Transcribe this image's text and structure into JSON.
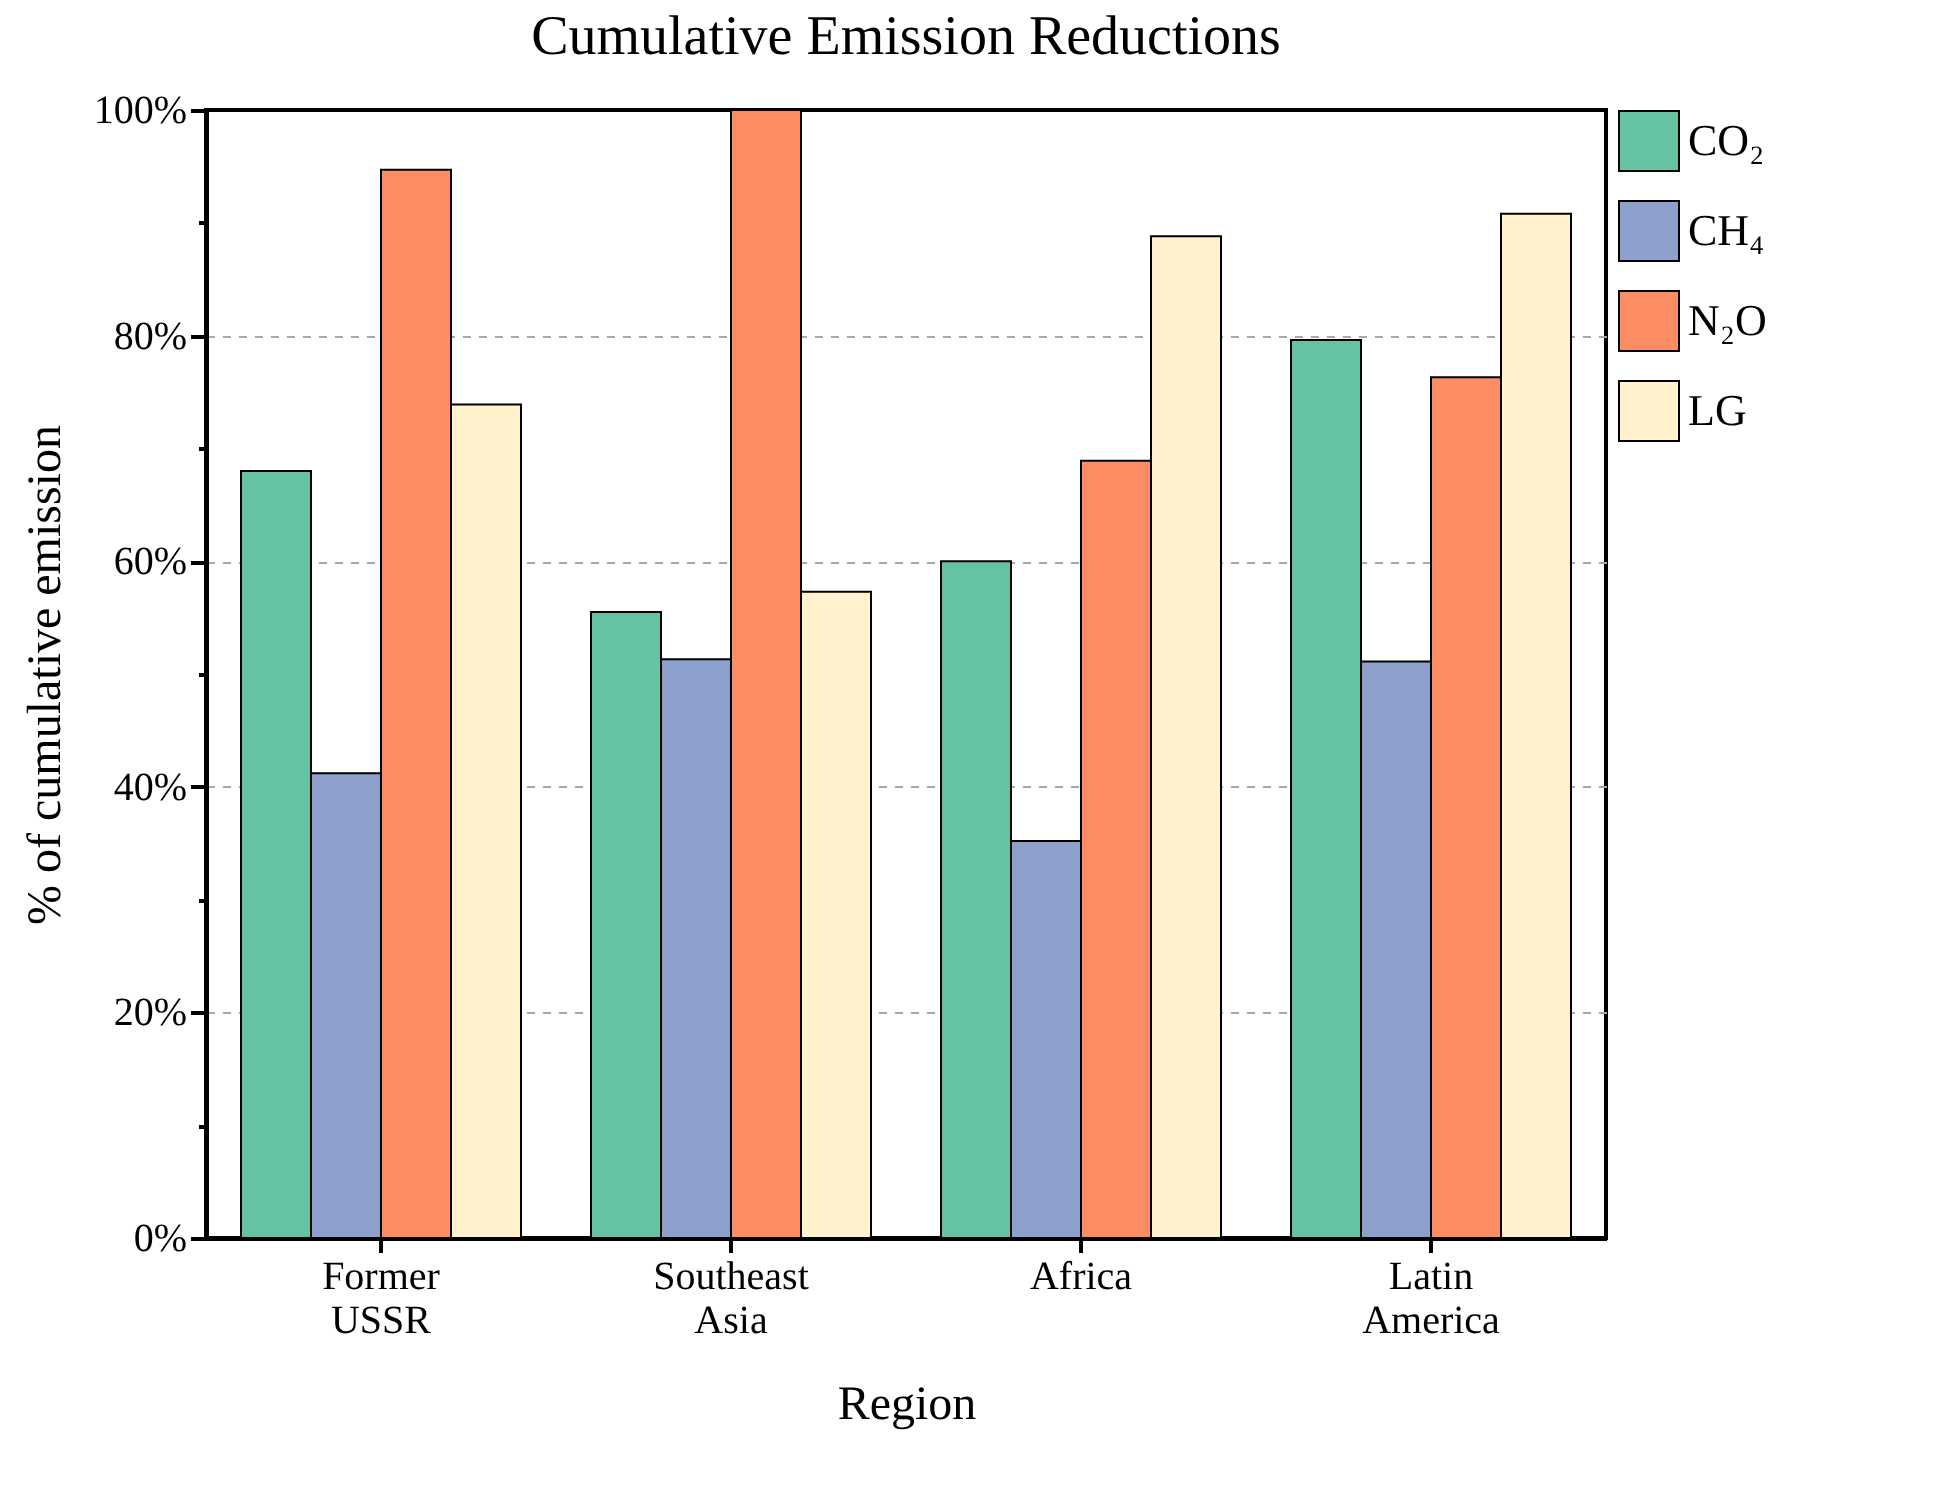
{
  "chart_data": {
    "type": "bar",
    "title": "Cumulative Emission Reductions",
    "xlabel": "Region",
    "ylabel": "% of cumulative emission",
    "categories": [
      "Former USSR",
      "Southeast Asia",
      "Africa",
      "Latin America"
    ],
    "series": [
      {
        "name": "CO₂",
        "color": "#66c2a5",
        "values": [
          68,
          55.5,
          60,
          79.6
        ]
      },
      {
        "name": "CH₄",
        "color": "#8da0cb",
        "values": [
          41.2,
          51.3,
          35.2,
          51.1
        ]
      },
      {
        "name": "N₂O",
        "color": "#fc8d62",
        "values": [
          94.7,
          100,
          68.9,
          76.3
        ]
      },
      {
        "name": "LG",
        "color": "#fff2cc",
        "values": [
          73.9,
          57.3,
          88.8,
          90.8
        ]
      }
    ],
    "ylim": [
      0,
      100
    ],
    "yticks": [
      {
        "value": 0,
        "label": "0%"
      },
      {
        "value": 10,
        "label": null
      },
      {
        "value": 20,
        "label": "20%"
      },
      {
        "value": 30,
        "label": null
      },
      {
        "value": 40,
        "label": "40%"
      },
      {
        "value": 50,
        "label": null
      },
      {
        "value": 60,
        "label": "60%"
      },
      {
        "value": 70,
        "label": null
      },
      {
        "value": 80,
        "label": "80%"
      },
      {
        "value": 90,
        "label": null
      },
      {
        "value": 100,
        "label": "100%"
      }
    ],
    "grid": "y",
    "legend": "right"
  }
}
